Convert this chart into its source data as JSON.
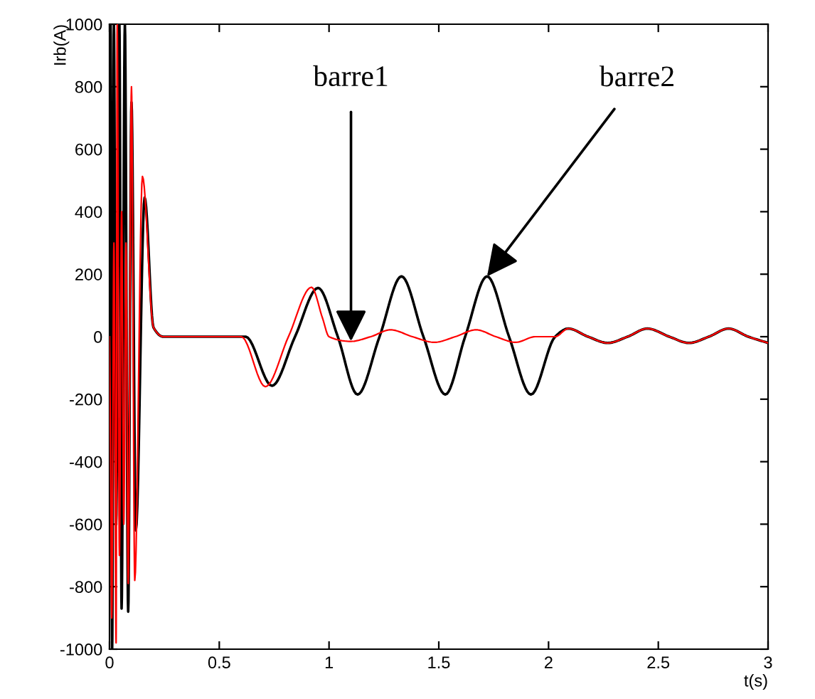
{
  "chart_data": {
    "type": "line",
    "xlabel": "t(s)",
    "ylabel": "Irb(A)",
    "xlim": [
      0,
      3
    ],
    "xticks": [
      0,
      0.5,
      1,
      1.5,
      2,
      2.5,
      3
    ],
    "ylim": [
      -1000,
      1000
    ],
    "yticks": [
      -1000,
      -800,
      -600,
      -400,
      -200,
      0,
      200,
      400,
      600,
      800,
      1000
    ],
    "grid": false,
    "series": [
      {
        "color": "#000000",
        "x": [
          0,
          0.005,
          0.012,
          0.02,
          0.03,
          0.045,
          0.055,
          0.07,
          0.085,
          0.1,
          0.12,
          0.16,
          0.2,
          0.245,
          0.62,
          0.74,
          0.845,
          0.95,
          1.04,
          1.13,
          1.23,
          1.33,
          1.43,
          1.53,
          1.62,
          1.72,
          1.82,
          1.92,
          2.03,
          2.09,
          2.18,
          2.27,
          2.36,
          2.45,
          2.55,
          2.64,
          2.73,
          2.82,
          2.91,
          3.0
        ],
        "values": [
          0,
          1000,
          -1000,
          1000,
          -600,
          1000,
          -870,
          1000,
          -880,
          750,
          -620,
          445,
          30,
          0,
          0,
          -157,
          0,
          156,
          0,
          -185,
          0,
          193,
          0,
          -185,
          0,
          193,
          0,
          -185,
          0,
          26,
          0,
          -20,
          0,
          26,
          0,
          -20,
          0,
          26,
          0,
          -20
        ]
      },
      {
        "color": "#ff0000",
        "x": [
          0,
          0.005,
          0.01,
          0.02,
          0.03,
          0.035,
          0.045,
          0.055,
          0.065,
          0.075,
          0.085,
          0.1,
          0.115,
          0.15,
          0.2,
          0.245,
          0.6,
          0.71,
          0.815,
          0.92,
          0.97,
          1.0,
          1.1,
          1.19,
          1.28,
          1.38,
          1.48,
          1.575,
          1.67,
          1.76,
          1.85,
          1.94,
          2.03,
          2.09,
          2.18,
          2.27,
          2.36,
          2.45,
          2.55,
          2.64,
          2.73,
          2.82,
          2.91,
          3.0
        ],
        "values": [
          0,
          -400,
          -900,
          300,
          -980,
          1000,
          -700,
          400,
          -600,
          300,
          -790,
          800,
          -780,
          513,
          30,
          0,
          0,
          -160,
          0,
          158,
          60,
          0,
          -15,
          0,
          22,
          0,
          -18,
          0,
          22,
          0,
          -18,
          0,
          0,
          26,
          0,
          -20,
          0,
          26,
          0,
          -20,
          0,
          26,
          0,
          -20
        ]
      }
    ],
    "annotations": [
      {
        "text": "barre1",
        "x": 1.1,
        "y": -15
      },
      {
        "text": "barre2",
        "x": 1.72,
        "y": 193
      }
    ]
  }
}
